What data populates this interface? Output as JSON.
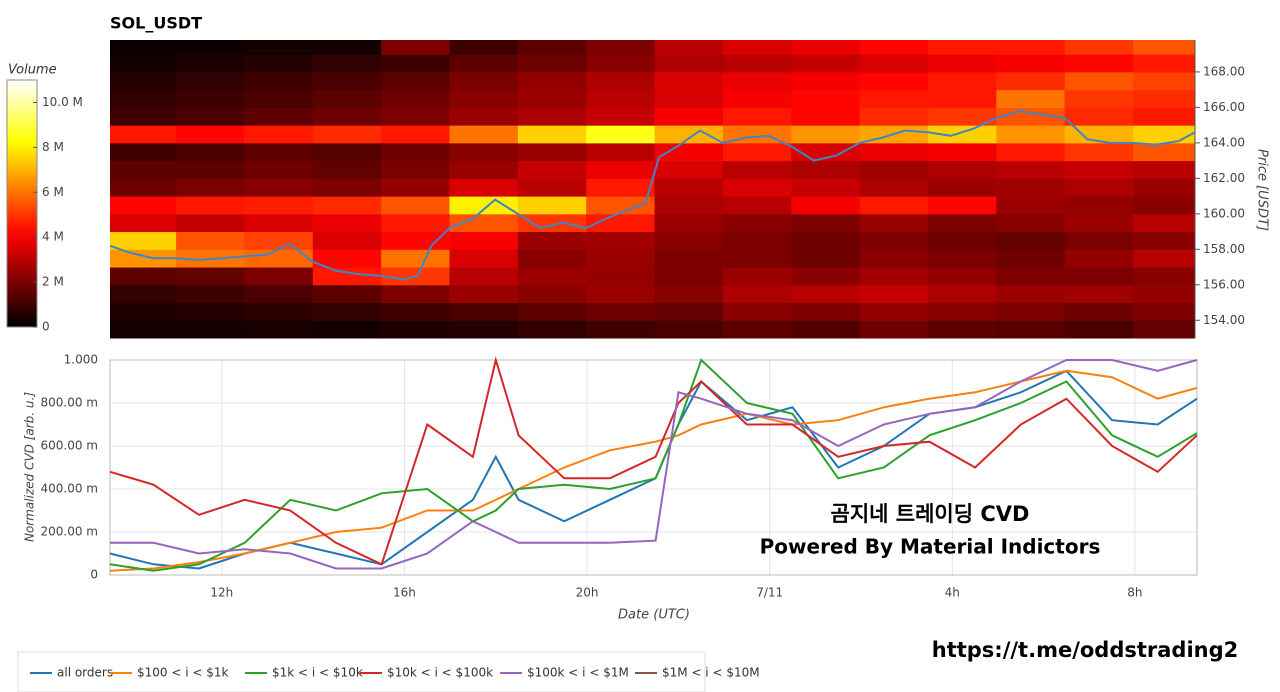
{
  "chart_data": [
    {
      "type": "heatmap",
      "title": "SOL_USDT",
      "ylabel": "Price [USDT]",
      "x_edges": [
        9.55,
        11,
        12.5,
        14,
        15.5,
        17,
        18.5,
        20,
        21.5,
        23,
        24.5,
        26,
        27.5,
        29,
        30.5,
        32,
        33.36
      ],
      "y_edges": [
        153,
        154,
        155,
        156,
        157,
        158,
        159,
        160,
        161,
        162,
        163,
        164,
        165,
        166,
        167,
        168,
        169,
        169.8
      ],
      "z": [
        [
          0.3,
          0.3,
          0.4,
          0.3,
          0.5,
          0.6,
          0.8,
          1,
          1.2,
          1.5,
          1.3,
          1.8,
          1.5,
          1.4,
          1.2,
          1.6
        ],
        [
          0.5,
          0.6,
          0.7,
          0.8,
          1,
          1.2,
          1.5,
          1.8,
          1.6,
          2.2,
          2,
          2.4,
          2.2,
          2,
          1.8,
          2
        ],
        [
          0.8,
          1,
          1.2,
          1.5,
          2,
          2.5,
          2.2,
          2.5,
          2.2,
          2.8,
          3,
          3.2,
          2.8,
          2.5,
          2.6,
          2.4
        ],
        [
          1.5,
          1.6,
          2,
          4.5,
          5,
          3,
          2.5,
          2.4,
          2,
          2.5,
          2.2,
          2.6,
          2.4,
          2,
          2,
          2.2
        ],
        [
          6.5,
          6,
          5.8,
          4.2,
          6,
          3.5,
          2.2,
          2.5,
          2,
          2,
          1.8,
          2.2,
          2,
          1.8,
          2.4,
          3
        ],
        [
          7.5,
          5.5,
          5.2,
          3.5,
          4.2,
          4,
          2.5,
          2.6,
          2.2,
          2,
          1.8,
          2,
          1.8,
          1.6,
          2,
          2.2
        ],
        [
          3.5,
          3.2,
          3.5,
          3.8,
          4.5,
          5.5,
          5,
          4.5,
          2.5,
          2.2,
          2,
          2.5,
          2,
          2.2,
          2.5,
          3
        ],
        [
          4.2,
          4.5,
          4.6,
          4.8,
          5.5,
          8,
          7.5,
          5.5,
          2.8,
          3,
          4,
          4.5,
          4.2,
          2.5,
          2.4,
          2.2
        ],
        [
          1.8,
          2,
          2.2,
          2,
          2.4,
          3.5,
          3,
          4.5,
          3,
          3.5,
          3.2,
          2.8,
          2.5,
          2.6,
          2.8,
          2.5
        ],
        [
          1.5,
          1.5,
          1.8,
          1.6,
          2,
          2.5,
          3.2,
          3.8,
          3.5,
          3,
          2.8,
          2.6,
          2.8,
          3,
          3.2,
          3
        ],
        [
          1,
          1.2,
          1.5,
          1.4,
          1.8,
          2.2,
          2.5,
          3,
          4,
          4.5,
          3.5,
          3.8,
          4,
          4.5,
          5,
          5.5
        ],
        [
          4.5,
          4.2,
          4.5,
          4.8,
          4.5,
          6,
          7.5,
          8.5,
          7,
          6,
          6.5,
          6.8,
          7.5,
          6.5,
          7,
          7.5
        ],
        [
          1,
          1.2,
          1.5,
          1.8,
          2,
          2.5,
          2.8,
          3.2,
          4,
          4.5,
          4.2,
          4.8,
          5,
          5.5,
          4.8,
          4.5
        ],
        [
          0.8,
          1,
          1.2,
          1.5,
          1.8,
          2.2,
          2.5,
          3,
          3.5,
          4,
          4.2,
          4.5,
          4.5,
          6,
          5,
          4.8
        ],
        [
          0.6,
          0.8,
          1,
          1.2,
          1.5,
          2,
          2.4,
          2.8,
          3.5,
          3.8,
          4,
          4.2,
          4.5,
          4.8,
          5.5,
          5.2
        ],
        [
          0.3,
          0.5,
          0.6,
          0.8,
          1,
          1.5,
          1.8,
          2.2,
          2.8,
          3,
          3.2,
          3.5,
          3.8,
          4,
          4.2,
          4.5
        ],
        [
          0.2,
          0.2,
          0.3,
          0.3,
          2,
          1,
          1.5,
          2,
          3,
          3.5,
          3.8,
          4.2,
          4.5,
          4.5,
          5,
          5.5
        ]
      ],
      "xlim": [
        9.55,
        33.36
      ],
      "ylim": [
        153,
        169.8
      ],
      "yticks": [
        {
          "value": 154,
          "label": "154.00"
        },
        {
          "value": 156,
          "label": "156.00"
        },
        {
          "value": 158,
          "label": "158.00"
        },
        {
          "value": 160,
          "label": "160.00"
        },
        {
          "value": 162,
          "label": "162.00"
        },
        {
          "value": 164,
          "label": "164.00"
        },
        {
          "value": 166,
          "label": "166.00"
        },
        {
          "value": 168,
          "label": "168.00"
        }
      ],
      "colorbar": {
        "label": "Volume",
        "lim": [
          0,
          11
        ],
        "ticks": [
          0,
          {
            "value": 2,
            "label": "2 M"
          },
          {
            "value": 4,
            "label": "4 M"
          },
          {
            "value": 6,
            "label": "6 M"
          },
          {
            "value": 8,
            "label": "8 M"
          },
          {
            "value": 10,
            "label": "10.0 M"
          }
        ]
      },
      "line": {
        "color": "#3f86c8",
        "x": [
          9.55,
          10,
          10.5,
          11,
          11.5,
          12,
          12.5,
          13,
          13.5,
          14,
          14.5,
          15,
          15.5,
          16,
          16.3,
          16.6,
          17,
          17.5,
          18,
          18.5,
          19,
          19.5,
          20,
          20.5,
          21,
          21.3,
          21.6,
          22,
          22.5,
          23,
          23.5,
          24,
          24.5,
          25,
          25.5,
          26,
          26.5,
          27,
          27.5,
          28,
          28.5,
          29,
          29.5,
          30,
          30.5,
          31,
          31.5,
          32,
          32.5,
          33,
          33.36
        ],
        "values": [
          158.2,
          157.8,
          157.5,
          157.5,
          157.4,
          157.5,
          157.6,
          157.7,
          158.3,
          157.3,
          156.8,
          156.6,
          156.5,
          156.3,
          156.5,
          158.2,
          159.2,
          159.7,
          160.8,
          160,
          159.2,
          159.5,
          159.2,
          159.8,
          160.3,
          160.6,
          163.2,
          163.8,
          164.7,
          164,
          164.3,
          164.4,
          163.8,
          163,
          163.3,
          164,
          164.3,
          164.7,
          164.6,
          164.4,
          164.8,
          165.4,
          165.8,
          165.6,
          165.4,
          164.2,
          164,
          164,
          163.9,
          164.1,
          164.6
        ]
      }
    },
    {
      "type": "line",
      "xlabel": "Date (UTC)",
      "ylabel": "Normalized CVD [arb. u.]",
      "xlim": [
        9.55,
        33.36
      ],
      "ylim": [
        0,
        1
      ],
      "grid": true,
      "xticks": [
        {
          "value": 12,
          "label": "12h"
        },
        {
          "value": 16,
          "label": "16h"
        },
        {
          "value": 20,
          "label": "20h"
        },
        {
          "value": 24,
          "label": "7/11"
        },
        {
          "value": 28,
          "label": "4h"
        },
        {
          "value": 32,
          "label": "8h"
        }
      ],
      "yticks": [
        0,
        {
          "value": 0.2,
          "label": "200.00 m"
        },
        {
          "value": 0.4,
          "label": "400.00 m"
        },
        {
          "value": 0.6,
          "label": "600.00 m"
        },
        {
          "value": 0.8,
          "label": "800.00 m"
        },
        {
          "value": 1,
          "label": "1.000"
        }
      ],
      "x": [
        9.55,
        10.5,
        11.5,
        12.5,
        13.5,
        14.5,
        15.5,
        16.5,
        17.5,
        18,
        18.5,
        19.5,
        20.5,
        21.5,
        22,
        22.5,
        23.5,
        24.5,
        25.5,
        26.5,
        27.5,
        28.5,
        29.5,
        30.5,
        31.5,
        32.5,
        33.36
      ],
      "series": [
        {
          "name": "all orders",
          "color": "#1f77b4",
          "values": [
            0.1,
            0.05,
            0.03,
            0.1,
            0.15,
            0.1,
            0.05,
            0.2,
            0.35,
            0.55,
            0.35,
            0.25,
            0.35,
            0.45,
            0.7,
            0.9,
            0.72,
            0.78,
            0.5,
            0.6,
            0.75,
            0.78,
            0.85,
            0.95,
            0.72,
            0.7,
            0.82
          ]
        },
        {
          "name": "$100 < i < $1k",
          "color": "#ff7f0e",
          "values": [
            0.02,
            0.03,
            0.06,
            0.1,
            0.15,
            0.2,
            0.22,
            0.3,
            0.3,
            0.35,
            0.4,
            0.5,
            0.58,
            0.62,
            0.65,
            0.7,
            0.75,
            0.7,
            0.72,
            0.78,
            0.82,
            0.85,
            0.9,
            0.95,
            0.92,
            0.82,
            0.87
          ]
        },
        {
          "name": "$1k < i < $10k",
          "color": "#2ca02c",
          "values": [
            0.05,
            0.02,
            0.05,
            0.15,
            0.35,
            0.3,
            0.38,
            0.4,
            0.25,
            0.3,
            0.4,
            0.42,
            0.4,
            0.45,
            0.7,
            1,
            0.8,
            0.75,
            0.45,
            0.5,
            0.65,
            0.72,
            0.8,
            0.9,
            0.65,
            0.55,
            0.66
          ]
        },
        {
          "name": "$10k < i < $100k",
          "color": "#d62728",
          "values": [
            0.48,
            0.42,
            0.28,
            0.35,
            0.3,
            0.15,
            0.05,
            0.7,
            0.55,
            1,
            0.65,
            0.45,
            0.45,
            0.55,
            0.8,
            0.9,
            0.7,
            0.7,
            0.55,
            0.6,
            0.62,
            0.5,
            0.7,
            0.82,
            0.6,
            0.48,
            0.65
          ]
        },
        {
          "name": "$100k < i < $1M",
          "color": "#9467bd",
          "values": [
            0.15,
            0.15,
            0.1,
            0.12,
            0.1,
            0.03,
            0.03,
            0.1,
            0.25,
            0.2,
            0.15,
            0.15,
            0.15,
            0.16,
            0.85,
            0.82,
            0.75,
            0.72,
            0.6,
            0.7,
            0.75,
            0.78,
            0.9,
            1,
            1,
            0.95,
            1
          ]
        },
        {
          "name": "$1M < i < $10M",
          "color": "#8c564b",
          "values": [
            null,
            null,
            null,
            null,
            null,
            null,
            null,
            null,
            null,
            null,
            null,
            null,
            null,
            null,
            null,
            null,
            null,
            null,
            null,
            null,
            null,
            null,
            null,
            null,
            null,
            null,
            null
          ]
        }
      ]
    }
  ],
  "watermark": {
    "line1": "곰지네 트레이딩 CVD",
    "line2": "Powered By Material Indictors",
    "link": "https://t.me/oddstrading2"
  }
}
